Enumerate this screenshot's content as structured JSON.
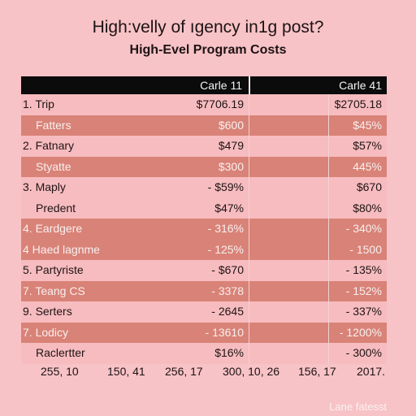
{
  "page": {
    "title": "High:velly of ıgency in1g post?",
    "subtitle": "High-Evel Program Costs"
  },
  "table": {
    "headers": [
      "Carle 11",
      "Carle 41"
    ],
    "rows": [
      {
        "label": "1.  Trip",
        "v1": "$7706.19",
        "v2": "$2705.18",
        "style": "light",
        "indent": false
      },
      {
        "label": "Fatters",
        "v1": "$600",
        "v2": "$45%",
        "style": "shade",
        "indent": true
      },
      {
        "label": "2.  Fatnary",
        "v1": "$479",
        "v2": "$57%",
        "style": "light",
        "indent": false
      },
      {
        "label": "Styatte",
        "v1": "$300",
        "v2": "445%",
        "style": "shade",
        "indent": true
      },
      {
        "label": "3.  Maply",
        "v1": "- $59%",
        "v2": "$670",
        "style": "light",
        "indent": false
      },
      {
        "label": "Predent",
        "v1": "$47%",
        "v2": "$80%",
        "style": "light",
        "indent": true
      },
      {
        "label": "4.  Eardgere",
        "v1": "- 316%",
        "v2": "- 340%",
        "style": "shade",
        "indent": false
      },
      {
        "label": "4  Haed lagnme",
        "v1": "- 125%",
        "v2": "- 1500",
        "style": "shade",
        "indent": false
      },
      {
        "label": "5.  Partyriste",
        "v1": "- $670",
        "v2": "- 135%",
        "style": "light",
        "indent": false
      },
      {
        "label": "7.  Teang CS",
        "v1": "- 3378",
        "v2": "- 152%",
        "style": "shade",
        "indent": false
      },
      {
        "label": "9.  Serters",
        "v1": "- 2645",
        "v2": "- 337%",
        "style": "light",
        "indent": false
      },
      {
        "label": "7.  Lodicy",
        "v1": "- 13610",
        "v2": "- 1200%",
        "style": "shade",
        "indent": false
      },
      {
        "label": "Raclertter",
        "v1": "$16%",
        "v2": "- 300%",
        "style": "light",
        "indent": true
      }
    ]
  },
  "footer": {
    "numbers": [
      "255, 10",
      "150, 41",
      "256, 17",
      "300, 10, 26",
      "156, 17",
      "2017."
    ],
    "corner_note": "Lane fatesst"
  }
}
